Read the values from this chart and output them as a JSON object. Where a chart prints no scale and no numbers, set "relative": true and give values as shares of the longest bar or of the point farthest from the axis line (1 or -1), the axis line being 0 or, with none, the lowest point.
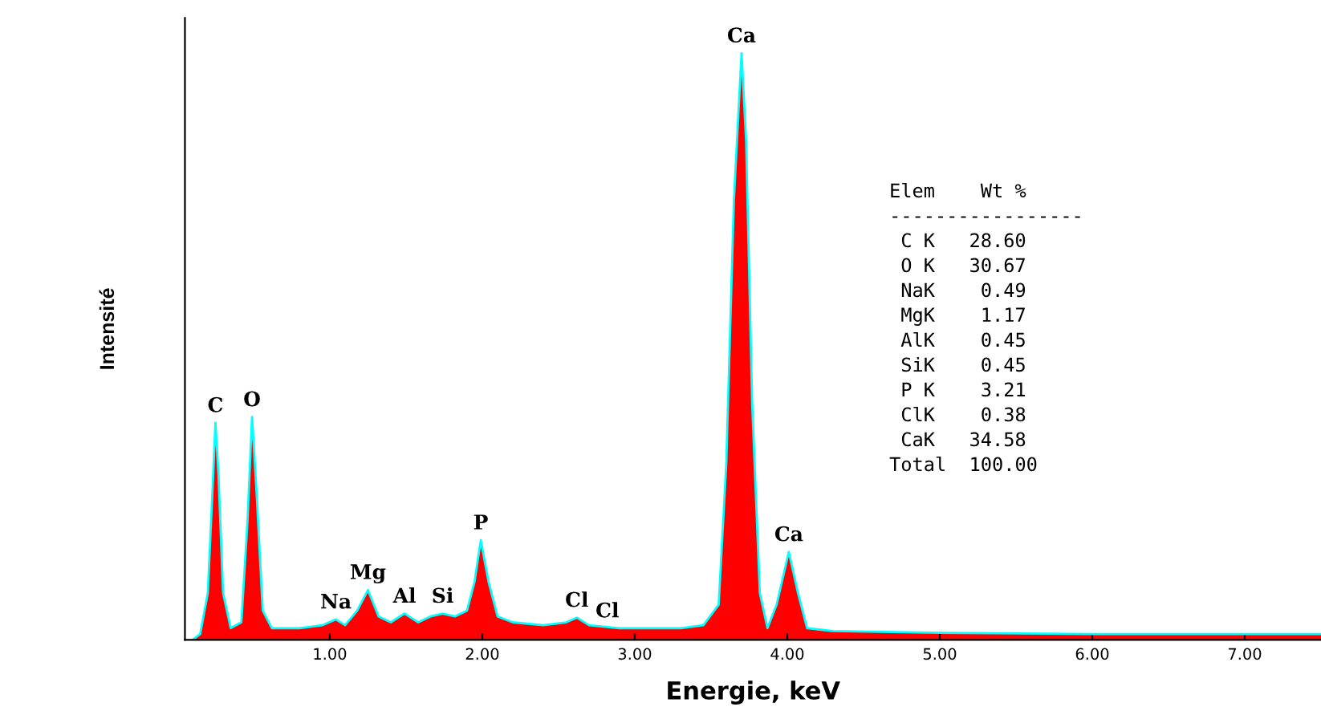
{
  "chart_data": {
    "type": "area",
    "relative": true,
    "xlabel": "Energie, keV",
    "ylabel": "Intensité",
    "x": [
      0.1,
      0.15,
      0.2,
      0.23,
      0.25,
      0.27,
      0.3,
      0.35,
      0.42,
      0.46,
      0.49,
      0.52,
      0.56,
      0.62,
      0.8,
      0.95,
      1.04,
      1.1,
      1.18,
      1.25,
      1.32,
      1.4,
      1.49,
      1.58,
      1.66,
      1.74,
      1.82,
      1.9,
      1.95,
      1.99,
      2.04,
      2.1,
      2.2,
      2.4,
      2.55,
      2.62,
      2.7,
      2.9,
      3.1,
      3.3,
      3.45,
      3.55,
      3.6,
      3.65,
      3.7,
      3.73,
      3.77,
      3.82,
      3.87,
      3.93,
      4.01,
      4.07,
      4.13,
      4.3,
      5.0,
      6.0,
      7.0,
      7.5
    ],
    "series": [
      {
        "color": "#ff0000",
        "values": [
          0.0,
          0.01,
          0.08,
          0.25,
          0.37,
          0.28,
          0.08,
          0.02,
          0.03,
          0.2,
          0.38,
          0.25,
          0.05,
          0.02,
          0.02,
          0.025,
          0.035,
          0.025,
          0.05,
          0.085,
          0.04,
          0.03,
          0.045,
          0.03,
          0.04,
          0.045,
          0.04,
          0.05,
          0.1,
          0.17,
          0.1,
          0.04,
          0.03,
          0.025,
          0.03,
          0.038,
          0.025,
          0.02,
          0.02,
          0.02,
          0.025,
          0.06,
          0.3,
          0.75,
          1.0,
          0.85,
          0.4,
          0.08,
          0.02,
          0.06,
          0.15,
          0.08,
          0.02,
          0.015,
          0.012,
          0.01,
          0.01,
          0.01
        ]
      }
    ],
    "xlim": [
      0.05,
      7.5
    ],
    "xticks": [
      {
        "value": 1,
        "label": "1.00"
      },
      {
        "value": 2,
        "label": "2.00"
      },
      {
        "value": 3,
        "label": "3.00"
      },
      {
        "value": 4,
        "label": "4.00"
      },
      {
        "value": 5,
        "label": "5.00"
      },
      {
        "value": 6,
        "label": "6.00"
      },
      {
        "value": 7,
        "label": "7.00"
      }
    ],
    "tick_labels": "x",
    "grid": false,
    "legend": false,
    "annotations": [
      {
        "text": "C",
        "x": 0.25,
        "y": 0.37
      },
      {
        "text": "O",
        "x": 0.49,
        "y": 0.38
      },
      {
        "text": "Na",
        "x": 1.04,
        "y": 0.035
      },
      {
        "text": "Mg",
        "x": 1.25,
        "y": 0.085
      },
      {
        "text": "Al",
        "x": 1.49,
        "y": 0.045
      },
      {
        "text": "Si",
        "x": 1.74,
        "y": 0.045
      },
      {
        "text": "P",
        "x": 1.99,
        "y": 0.17
      },
      {
        "text": "Cl",
        "x": 2.62,
        "y": 0.038
      },
      {
        "text": "Cl",
        "x": 2.82,
        "y": 0.02
      },
      {
        "text": "Ca",
        "x": 3.7,
        "y": 1.0
      },
      {
        "text": "Ca",
        "x": 4.01,
        "y": 0.15
      },
      "Elem    Wt %",
      "-----------------",
      " C K   28.60",
      " O K   30.67",
      " NaK    0.49",
      " MgK    1.17",
      " AlK    0.45",
      " SiK    0.45",
      " P K    3.21",
      " ClK    0.38",
      " CaK   34.58",
      "Total  100.00"
    ]
  }
}
